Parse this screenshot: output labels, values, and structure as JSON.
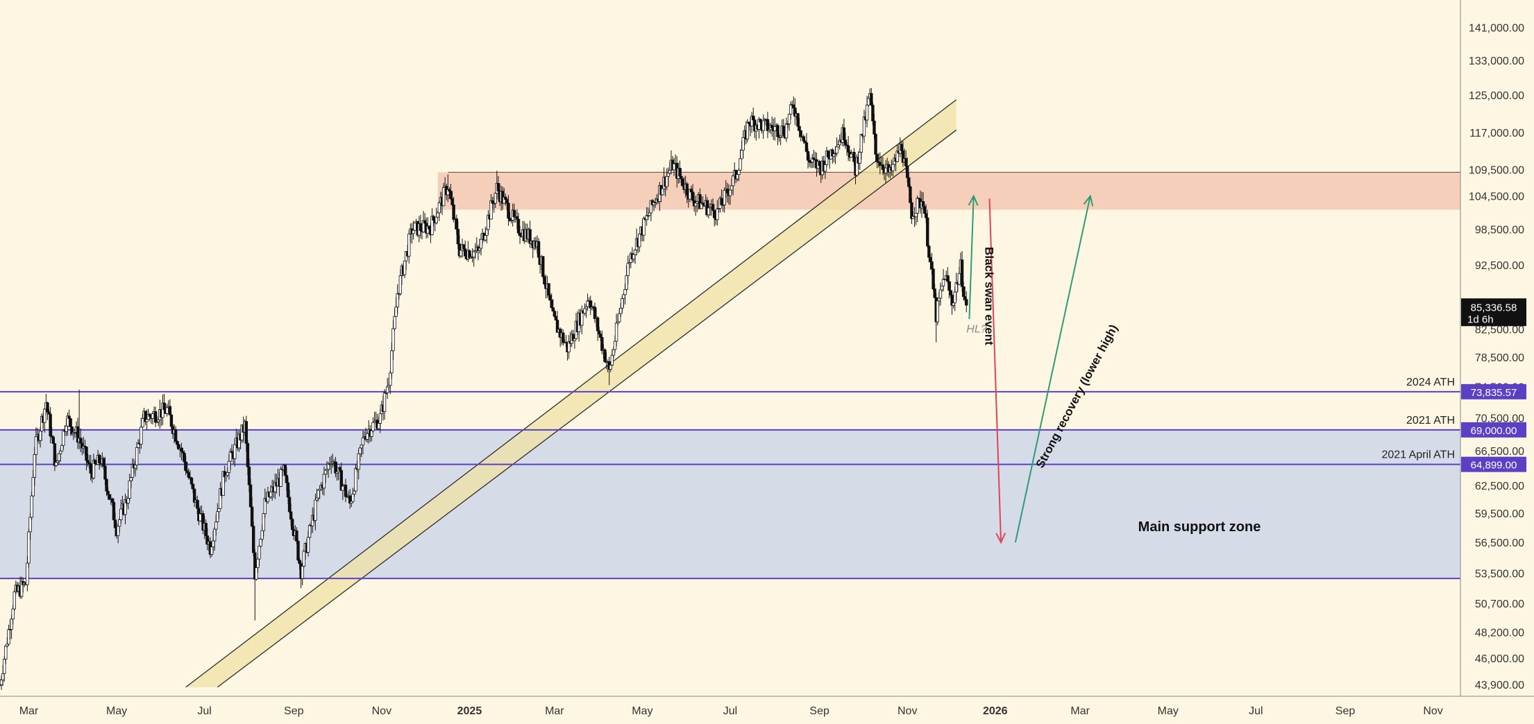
{
  "chart_data": {
    "type": "candlestick",
    "title": "",
    "xlabel": "",
    "ylabel": "",
    "y_scale": "log",
    "ylim": [
      43000,
      148000
    ],
    "x_range": [
      "2024-02-10",
      "2026-11-20"
    ],
    "grid": false,
    "legend": "none",
    "y_ticks": [
      {
        "value": 141000,
        "label": "141,000.00"
      },
      {
        "value": 133000,
        "label": "133,000.00"
      },
      {
        "value": 125000,
        "label": "125,000.00"
      },
      {
        "value": 117000,
        "label": "117,000.00"
      },
      {
        "value": 109500,
        "label": "109,500.00"
      },
      {
        "value": 104500,
        "label": "104,500.00"
      },
      {
        "value": 98500,
        "label": "98,500.00"
      },
      {
        "value": 92500,
        "label": "92,500.00"
      },
      {
        "value": 86500,
        "label": "86,500.00"
      },
      {
        "value": 82500,
        "label": "82,500.00"
      },
      {
        "value": 78500,
        "label": "78,500.00"
      },
      {
        "value": 74500,
        "label": "74,500.00"
      },
      {
        "value": 70500,
        "label": "70,500.00"
      },
      {
        "value": 66500,
        "label": "66,500.00"
      },
      {
        "value": 62500,
        "label": "62,500.00"
      },
      {
        "value": 59500,
        "label": "59,500.00"
      },
      {
        "value": 56500,
        "label": "56,500.00"
      },
      {
        "value": 53500,
        "label": "53,500.00"
      },
      {
        "value": 50700,
        "label": "50,700.00"
      },
      {
        "value": 48200,
        "label": "48,200.00"
      },
      {
        "value": 46000,
        "label": "46,000.00"
      },
      {
        "value": 43900,
        "label": "43,900.00"
      }
    ],
    "x_ticks": [
      {
        "date": "2024-03-01",
        "label": "Mar",
        "bold": false
      },
      {
        "date": "2024-05-01",
        "label": "May",
        "bold": false
      },
      {
        "date": "2024-07-01",
        "label": "Jul",
        "bold": false
      },
      {
        "date": "2024-09-01",
        "label": "Sep",
        "bold": false
      },
      {
        "date": "2024-11-01",
        "label": "Nov",
        "bold": false
      },
      {
        "date": "2025-01-01",
        "label": "2025",
        "bold": true
      },
      {
        "date": "2025-03-01",
        "label": "Mar",
        "bold": false
      },
      {
        "date": "2025-05-01",
        "label": "May",
        "bold": false
      },
      {
        "date": "2025-07-01",
        "label": "Jul",
        "bold": false
      },
      {
        "date": "2025-09-01",
        "label": "Sep",
        "bold": false
      },
      {
        "date": "2025-11-01",
        "label": "Nov",
        "bold": false
      },
      {
        "date": "2026-01-01",
        "label": "2026",
        "bold": true
      },
      {
        "date": "2026-03-01",
        "label": "Mar",
        "bold": false
      },
      {
        "date": "2026-05-01",
        "label": "May",
        "bold": false
      },
      {
        "date": "2026-07-01",
        "label": "Jul",
        "bold": false
      },
      {
        "date": "2026-09-01",
        "label": "Sep",
        "bold": false
      },
      {
        "date": "2026-11-01",
        "label": "Nov",
        "bold": false
      }
    ],
    "price_path": [
      [
        "2024-02-10",
        43900
      ],
      [
        "2024-02-20",
        51500
      ],
      [
        "2024-02-28",
        52500
      ],
      [
        "2024-03-05",
        66500
      ],
      [
        "2024-03-13",
        72500
      ],
      [
        "2024-03-20",
        64500
      ],
      [
        "2024-03-27",
        70500
      ],
      [
        "2024-04-05",
        68000
      ],
      [
        "2024-04-13",
        64000
      ],
      [
        "2024-04-20",
        65500
      ],
      [
        "2024-05-01",
        58000
      ],
      [
        "2024-05-08",
        61000
      ],
      [
        "2024-05-20",
        70500
      ],
      [
        "2024-06-05",
        71500
      ],
      [
        "2024-06-15",
        66500
      ],
      [
        "2024-06-25",
        60500
      ],
      [
        "2024-07-05",
        56000
      ],
      [
        "2024-07-15",
        64000
      ],
      [
        "2024-07-29",
        69500
      ],
      [
        "2024-08-05",
        53500
      ],
      [
        "2024-08-12",
        60500
      ],
      [
        "2024-08-25",
        64000
      ],
      [
        "2024-09-06",
        53800
      ],
      [
        "2024-09-18",
        61500
      ],
      [
        "2024-09-27",
        65800
      ],
      [
        "2024-10-10",
        60500
      ],
      [
        "2024-10-20",
        68500
      ],
      [
        "2024-10-31",
        70500
      ],
      [
        "2024-11-06",
        75500
      ],
      [
        "2024-11-12",
        88000
      ],
      [
        "2024-11-22",
        98500
      ],
      [
        "2024-12-05",
        99000
      ],
      [
        "2024-12-17",
        106500
      ],
      [
        "2024-12-25",
        95000
      ],
      [
        "2025-01-07",
        94500
      ],
      [
        "2025-01-20",
        106000
      ],
      [
        "2025-02-03",
        99000
      ],
      [
        "2025-02-17",
        96000
      ],
      [
        "2025-02-28",
        84000
      ],
      [
        "2025-03-10",
        79800
      ],
      [
        "2025-03-25",
        87500
      ],
      [
        "2025-04-08",
        76500
      ],
      [
        "2025-04-22",
        93500
      ],
      [
        "2025-05-10",
        104000
      ],
      [
        "2025-05-22",
        110500
      ],
      [
        "2025-06-05",
        104000
      ],
      [
        "2025-06-22",
        101500
      ],
      [
        "2025-07-05",
        108500
      ],
      [
        "2025-07-14",
        119500
      ],
      [
        "2025-07-28",
        118000
      ],
      [
        "2025-08-08",
        117500
      ],
      [
        "2025-08-14",
        123000
      ],
      [
        "2025-08-25",
        111000
      ],
      [
        "2025-09-02",
        110000
      ],
      [
        "2025-09-18",
        117000
      ],
      [
        "2025-09-26",
        109500
      ],
      [
        "2025-10-06",
        125000
      ],
      [
        "2025-10-10",
        112500
      ],
      [
        "2025-10-20",
        108500
      ],
      [
        "2025-10-28",
        114500
      ],
      [
        "2025-11-04",
        101500
      ],
      [
        "2025-11-12",
        104000
      ],
      [
        "2025-11-21",
        84500
      ],
      [
        "2025-11-27",
        91000
      ],
      [
        "2025-12-02",
        86500
      ],
      [
        "2025-12-08",
        92000
      ],
      [
        "2025-12-12",
        85336.58
      ]
    ],
    "price_high": [
      [
        "2024-08-05",
        49200
      ],
      [
        "2024-04-05",
        74100
      ],
      [
        "2024-12-17",
        108600
      ],
      [
        "2025-01-20",
        109300
      ],
      [
        "2025-04-08",
        74700
      ],
      [
        "2025-08-14",
        124400
      ],
      [
        "2025-10-06",
        126500
      ],
      [
        "2025-11-21",
        80600
      ]
    ],
    "current_price": {
      "value": 85336.58,
      "label": "85,336.58",
      "timer": "1d 6h"
    },
    "resistance_zone": {
      "from": 102000,
      "to": 109000,
      "color": "#f4c8b3"
    },
    "support_zone": {
      "from": 53000,
      "to": 69000,
      "color": "#d6dbe8",
      "label": "Main support zone"
    },
    "levels": [
      {
        "value": 73835.57,
        "name": "2024 ATH",
        "tag": "73,835.57",
        "color": "#5b3fc4"
      },
      {
        "value": 69000,
        "name": "2021 ATH",
        "tag": "69,000.00",
        "color": "#5b3fc4"
      },
      {
        "value": 64899,
        "name": "2021 April ATH",
        "tag": "64,899.00",
        "color": "#5b3fc4"
      },
      {
        "value": 53000,
        "name": "",
        "tag": "",
        "color": "#5b3fc4"
      }
    ],
    "channel": [
      {
        "points": [
          [
            "2024-06-18",
            43700
          ],
          [
            "2025-12-05",
            124000
          ]
        ]
      },
      {
        "points": [
          [
            "2024-07-10",
            43700
          ],
          [
            "2025-12-05",
            117500
          ]
        ]
      }
    ],
    "annotations": [
      {
        "text": "Black swan event",
        "date": "2025-12-25",
        "value": 87500,
        "color": "#111111",
        "rotate": 90
      },
      {
        "text": "Strong recovery (lower high)",
        "date": "2026-03-01",
        "value": 73000,
        "color": "#111111",
        "rotate": -62
      },
      {
        "text": "HL?",
        "date": "2025-12-12",
        "value": 82000,
        "color": "#8a8a8a",
        "rotate": 0
      }
    ],
    "arrows": [
      {
        "from": [
          "2025-12-14",
          84000
        ],
        "to": [
          "2025-12-17",
          104500
        ],
        "color": "#2e9b73"
      },
      {
        "from": [
          "2025-12-28",
          104000
        ],
        "to": [
          "2026-01-05",
          56500
        ],
        "color": "#e04454"
      },
      {
        "from": [
          "2026-01-15",
          56500
        ],
        "to": [
          "2026-03-08",
          104500
        ],
        "color": "#2e9b73"
      }
    ]
  }
}
